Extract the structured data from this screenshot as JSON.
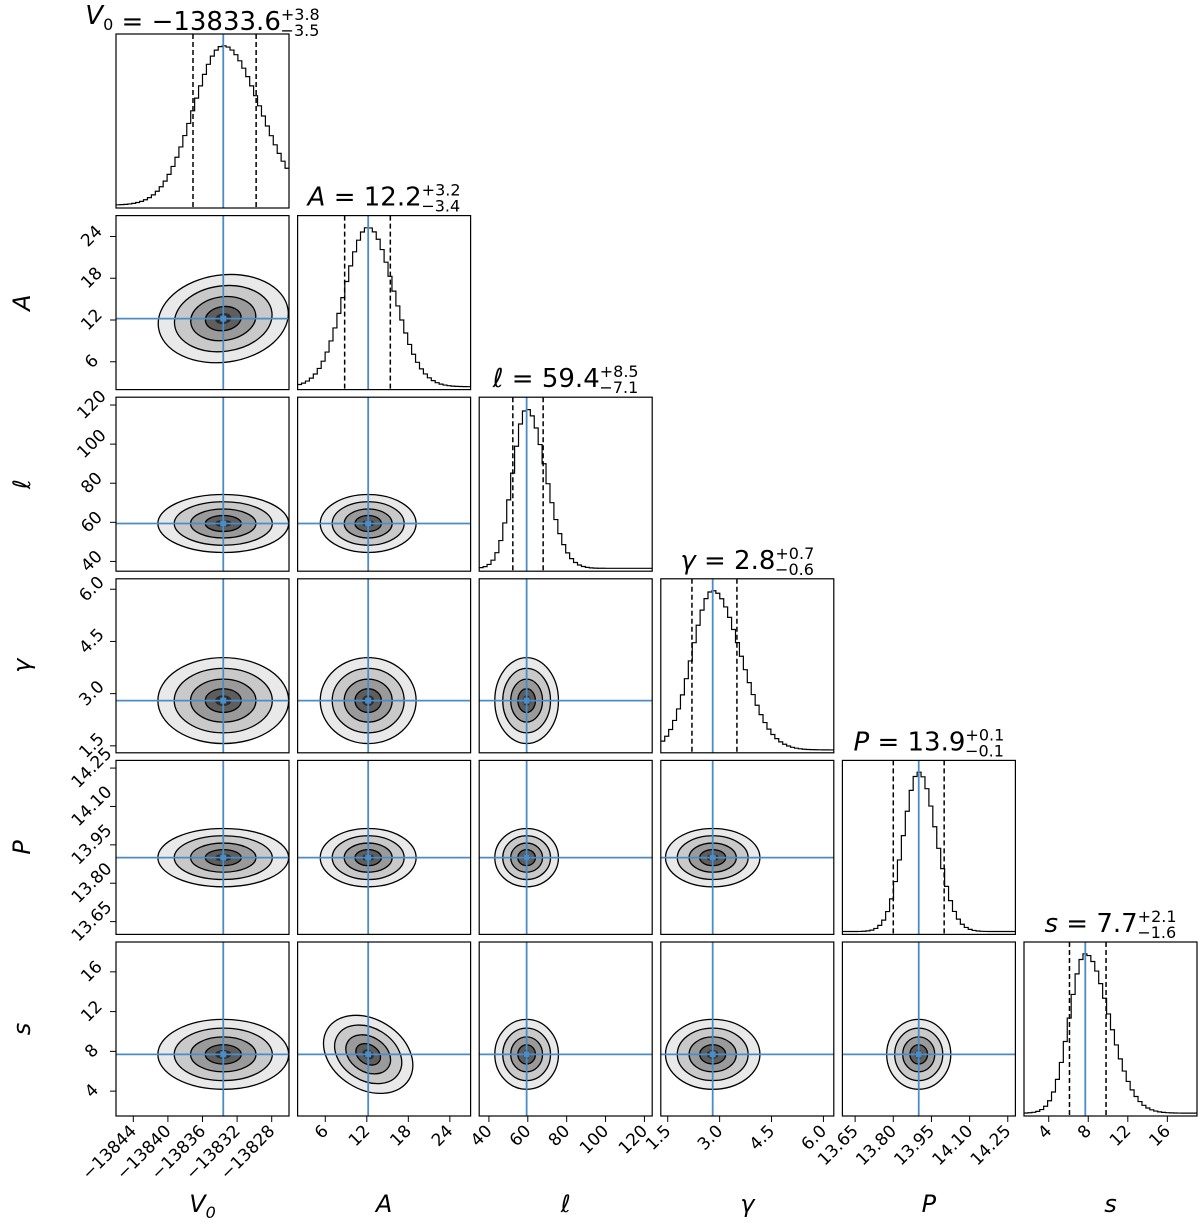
{
  "chart_data": {
    "type": "corner",
    "colors": {
      "truth_line": "#4c8cc6",
      "contour_line": "#000000",
      "density_fill": "#3a3a3a",
      "frame": "#000000"
    },
    "parameters": [
      {
        "key": "V0",
        "label_main": "V",
        "label_sub": "0",
        "title_prefix": "V",
        "title_sub": "0",
        "median": -13833.6,
        "err_plus": 3.8,
        "err_minus": 3.5,
        "title_value": "−13833.6",
        "title_plus": "+3.8",
        "title_minus": "−3.5",
        "range": [
          -13846,
          -13826
        ],
        "ticks": [
          -13844,
          -13840,
          -13836,
          -13832,
          -13828
        ],
        "tick_labels": [
          "−13844",
          "−13840",
          "−13836",
          "−13832",
          "−13828"
        ],
        "sigma": 3.6
      },
      {
        "key": "A",
        "label_main": "A",
        "title_prefix": "A",
        "median": 12.2,
        "err_plus": 3.2,
        "err_minus": 3.4,
        "title_value": "12.2",
        "title_plus": "+3.2",
        "title_minus": "−3.4",
        "range": [
          2,
          27
        ],
        "ticks": [
          6,
          12,
          18,
          24
        ],
        "tick_labels": [
          "6",
          "12",
          "18",
          "24"
        ],
        "sigma": 3.3
      },
      {
        "key": "ell",
        "label_main": "ℓ",
        "title_prefix": "ℓ",
        "median": 59.4,
        "err_plus": 8.5,
        "err_minus": 7.1,
        "title_value": "59.4",
        "title_plus": "+8.5",
        "title_minus": "−7.1",
        "range": [
          35,
          124
        ],
        "ticks": [
          40,
          60,
          80,
          100,
          120
        ],
        "tick_labels": [
          "40",
          "60",
          "80",
          "100",
          "120"
        ],
        "sigma": 7.8
      },
      {
        "key": "gamma",
        "label_main": "γ",
        "title_prefix": "γ",
        "median": 2.8,
        "err_plus": 0.7,
        "err_minus": 0.6,
        "title_value": "2.8",
        "title_plus": "+0.7",
        "title_minus": "−0.6",
        "range": [
          1.3,
          6.3
        ],
        "ticks": [
          1.5,
          3.0,
          4.5,
          6.0
        ],
        "tick_labels": [
          "1.5",
          "3.0",
          "4.5",
          "6.0"
        ],
        "sigma": 0.65
      },
      {
        "key": "P",
        "label_main": "P",
        "title_prefix": "P",
        "median": 13.9,
        "err_plus": 0.1,
        "err_minus": 0.1,
        "title_value": "13.9",
        "title_plus": "+0.1",
        "title_minus": "−0.1",
        "range": [
          13.6,
          14.28
        ],
        "ticks": [
          13.65,
          13.8,
          13.95,
          14.1,
          14.25
        ],
        "tick_labels": [
          "13.65",
          "13.80",
          "13.95",
          "14.10",
          "14.25"
        ],
        "sigma": 0.06
      },
      {
        "key": "s",
        "label_main": "s",
        "title_prefix": "s",
        "median": 7.7,
        "err_plus": 2.1,
        "err_minus": 1.6,
        "title_value": "7.7",
        "title_plus": "+2.1",
        "title_minus": "−1.6",
        "range": [
          1.5,
          19
        ],
        "ticks": [
          4,
          8,
          12,
          16
        ],
        "tick_labels": [
          "4",
          "8",
          "12",
          "16"
        ],
        "sigma": 1.85
      }
    ]
  }
}
